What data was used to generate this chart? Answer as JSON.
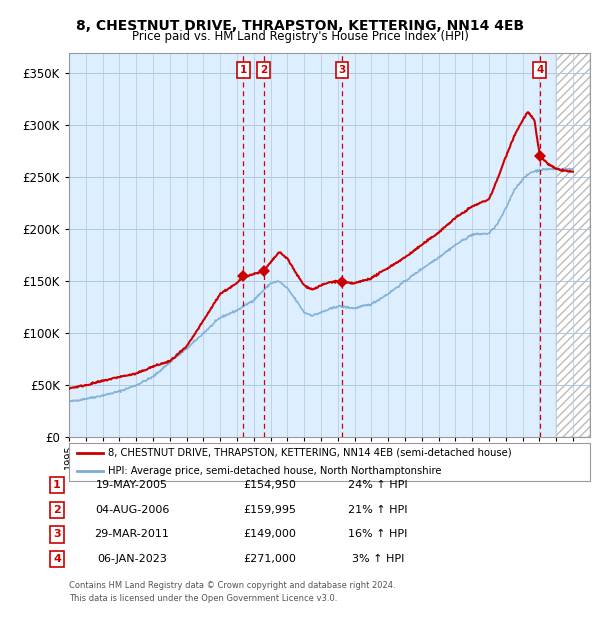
{
  "title": "8, CHESTNUT DRIVE, THRAPSTON, KETTERING, NN14 4EB",
  "subtitle": "Price paid vs. HM Land Registry's House Price Index (HPI)",
  "legend_line1": "8, CHESTNUT DRIVE, THRAPSTON, KETTERING, NN14 4EB (semi-detached house)",
  "legend_line2": "HPI: Average price, semi-detached house, North Northamptonshire",
  "footer1": "Contains HM Land Registry data © Crown copyright and database right 2024.",
  "footer2": "This data is licensed under the Open Government Licence v3.0.",
  "hpi_color": "#7aadd4",
  "price_color": "#cc0000",
  "bg_color": "#ddeeff",
  "grid_color": "#b0c8e0",
  "transactions": [
    {
      "id": 1,
      "date": "19-MAY-2005",
      "year": 2005.38,
      "price": 154950,
      "pct": "24%",
      "dir": "↑"
    },
    {
      "id": 2,
      "date": "04-AUG-2006",
      "year": 2006.59,
      "price": 159995,
      "pct": "21%",
      "dir": "↑"
    },
    {
      "id": 3,
      "date": "29-MAR-2011",
      "year": 2011.24,
      "price": 149000,
      "pct": "16%",
      "dir": "↑"
    },
    {
      "id": 4,
      "date": "06-JAN-2023",
      "year": 2023.02,
      "price": 271000,
      "pct": "3%",
      "dir": "↑"
    }
  ],
  "xmin": 1995,
  "xmax": 2026,
  "ymin": 0,
  "ymax": 370000,
  "yticks": [
    0,
    50000,
    100000,
    150000,
    200000,
    250000,
    300000,
    350000
  ],
  "ytick_labels": [
    "£0",
    "£50K",
    "£100K",
    "£150K",
    "£200K",
    "£250K",
    "£300K",
    "£350K"
  ],
  "current_year": 2024.0
}
